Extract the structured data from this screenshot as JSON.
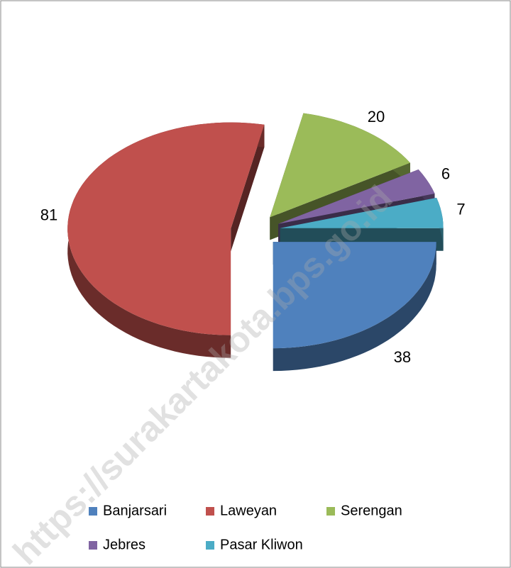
{
  "chart_data": {
    "type": "pie3d",
    "categories": [
      "Banjarsari",
      "Laweyan",
      "Serengan",
      "Jebres",
      "Pasar Kliwon"
    ],
    "values": [
      38,
      81,
      20,
      6,
      7
    ],
    "colors": [
      "#4f81bd",
      "#c0504d",
      "#9bbb59",
      "#8064a2",
      "#4bacc6"
    ],
    "legend": "bottom"
  },
  "watermark": "https://surakartakota.bps.go.id"
}
